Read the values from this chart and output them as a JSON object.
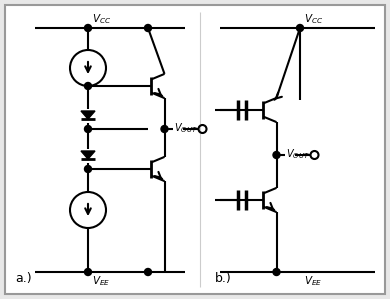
{
  "background_color": "#e8e8e8",
  "panel_background": "#ffffff",
  "fig_width": 3.9,
  "fig_height": 2.99,
  "label_a": "a.)",
  "label_b": "b.)"
}
